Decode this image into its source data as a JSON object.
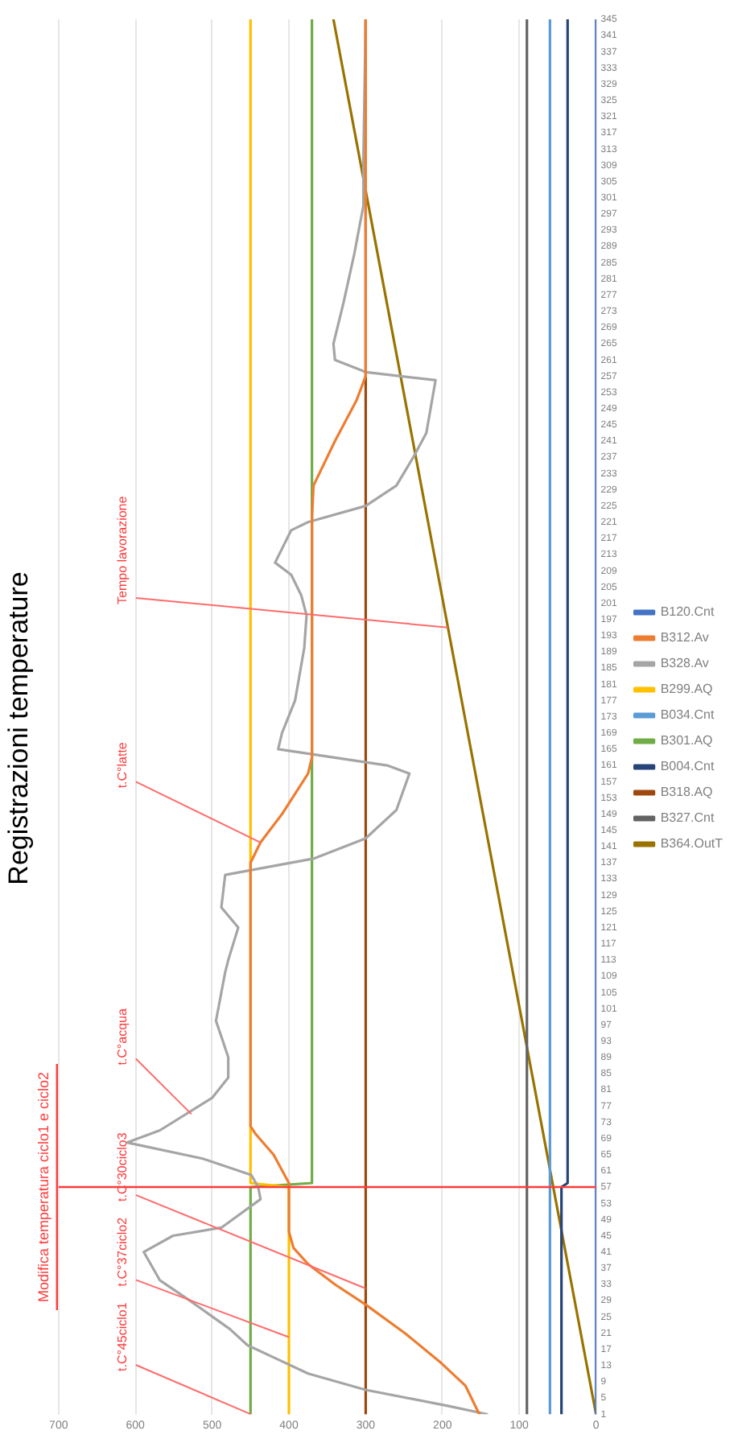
{
  "chart_data": {
    "type": "line",
    "title": "Registrazioni temperature",
    "orientation": "horizontal",
    "ylim": [
      1,
      345
    ],
    "yticks": [
      1,
      5,
      9,
      13,
      17,
      21,
      25,
      29,
      33,
      37,
      41,
      45,
      49,
      53,
      57,
      61,
      65,
      69,
      73,
      77,
      81,
      85,
      89,
      93,
      97,
      101,
      105,
      109,
      113,
      117,
      121,
      125,
      129,
      133,
      137,
      141,
      145,
      149,
      153,
      157,
      161,
      165,
      169,
      173,
      177,
      181,
      185,
      189,
      193,
      197,
      201,
      205,
      209,
      213,
      217,
      221,
      225,
      229,
      233,
      237,
      241,
      245,
      249,
      253,
      257,
      261,
      265,
      269,
      273,
      277,
      281,
      285,
      289,
      293,
      297,
      301,
      305,
      309,
      313,
      317,
      321,
      325,
      329,
      333,
      337,
      341,
      345
    ],
    "xlim": [
      700,
      0
    ],
    "xticks": [
      0,
      100,
      200,
      300,
      400,
      500,
      600,
      700
    ],
    "grid": "x",
    "legend": "right",
    "marker": "none",
    "line_style": "solid",
    "series": [
      {
        "name": "B120.Cnt",
        "color": "#4472c4",
        "x": [
          1,
          345
        ],
        "values": [
          0,
          0
        ]
      },
      {
        "name": "B312.Av",
        "color": "#ed7d31",
        "x": [
          1,
          8,
          14,
          21,
          28,
          33,
          38,
          42,
          46,
          57,
          58,
          65,
          70,
          72,
          137,
          142,
          149,
          159,
          163,
          222,
          230,
          241,
          251,
          257,
          345
        ],
        "values": [
          152,
          170,
          204,
          249,
          300,
          340,
          375,
          394,
          400,
          400,
          400,
          420,
          443,
          450,
          450,
          437,
          409,
          375,
          370,
          370,
          368,
          340,
          312,
          300,
          300
        ]
      },
      {
        "name": "B328.Av",
        "color": "#a5a5a5",
        "x": [
          1,
          3,
          7,
          11,
          15,
          18,
          22,
          29,
          34,
          41,
          45,
          47,
          54,
          57,
          60,
          64,
          68,
          71,
          79,
          84,
          89,
          93,
          98,
          105,
          110,
          113,
          121,
          126,
          134,
          138,
          143,
          150,
          159,
          161,
          165,
          169,
          177,
          190,
          198,
          203,
          208,
          211,
          219,
          221,
          225,
          230,
          237,
          243,
          256,
          258,
          261,
          265,
          275,
          287,
          299,
          310,
          345
        ],
        "values": [
          142,
          192,
          300,
          375,
          420,
          454,
          477,
          529,
          568,
          589,
          551,
          488,
          437,
          440,
          449,
          512,
          611,
          568,
          500,
          479,
          479,
          486,
          495,
          488,
          483,
          479,
          466,
          488,
          483,
          368,
          300,
          260,
          243,
          272,
          414,
          409,
          392,
          380,
          377,
          384,
          397,
          418,
          397,
          375,
          300,
          260,
          238,
          221,
          209,
          300,
          340,
          342,
          329,
          315,
          303,
          303,
          300
        ]
      },
      {
        "name": "B299.AQ",
        "color": "#ffc000",
        "x": [
          1,
          57,
          58,
          345
        ],
        "values": [
          400,
          400,
          450,
          450
        ]
      },
      {
        "name": "B034.Cnt",
        "color": "#5b9bd5",
        "x": [
          1,
          345
        ],
        "values": [
          60,
          60
        ]
      },
      {
        "name": "B301.AQ",
        "color": "#70ad47",
        "x": [
          1,
          57,
          58,
          345
        ],
        "values": [
          450,
          450,
          370,
          370
        ]
      },
      {
        "name": "B004.Cnt",
        "color": "#264478",
        "x": [
          1,
          57,
          58,
          345
        ],
        "values": [
          45,
          45,
          37,
          37
        ]
      },
      {
        "name": "B318.AQ",
        "color": "#9e480e",
        "x": [
          1,
          345
        ],
        "values": [
          300,
          300
        ]
      },
      {
        "name": "B327.Cnt",
        "color": "#636363",
        "x": [
          1,
          345
        ],
        "values": [
          90,
          90
        ]
      },
      {
        "name": "B364.OutT",
        "color": "#997300",
        "x": [
          1,
          345
        ],
        "values": [
          0,
          342
        ]
      }
    ],
    "ref_lines": [
      {
        "axis": "y",
        "value": 57,
        "label": "Modifica temperatura ciclo1 e ciclo2",
        "color": "#ff3b3b"
      }
    ],
    "annotations": [
      {
        "text": "t.C°45ciclo1",
        "x": 450,
        "y": 1
      },
      {
        "text": "t.C°37ciclo2",
        "x": 400,
        "y": 20
      },
      {
        "text": "t.C°30ciclo3",
        "x": 300,
        "y": 32
      },
      {
        "text": "t.C°acqua",
        "x": 527,
        "y": 75
      },
      {
        "text": "t.C°latte",
        "x": 437,
        "y": 142
      },
      {
        "text": "Tempo lavorazione",
        "x": 193,
        "y": 195
      }
    ]
  }
}
